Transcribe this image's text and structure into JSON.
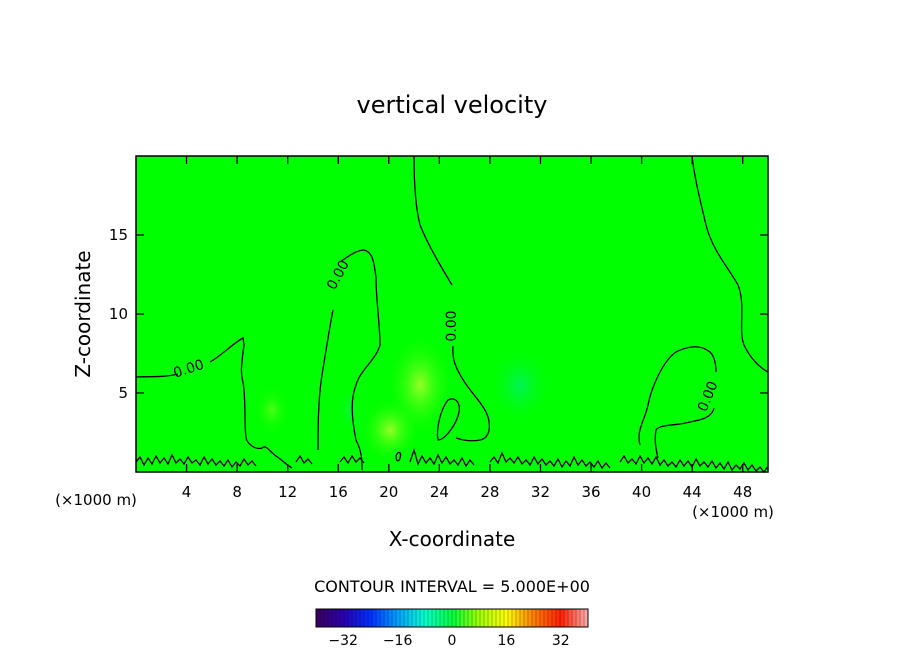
{
  "chart_data": {
    "type": "heatmap",
    "title": "vertical velocity",
    "xlabel": "X-coordinate",
    "ylabel": "Z-coordinate",
    "x_unit_left": "(×1000 m)",
    "x_unit_right": "(×1000 m)",
    "xlim": [
      0,
      50
    ],
    "ylim": [
      0,
      20
    ],
    "x_ticks": [
      4,
      8,
      12,
      16,
      20,
      24,
      28,
      32,
      36,
      40,
      44,
      48
    ],
    "y_ticks": [
      5,
      10,
      15
    ],
    "grid": false,
    "field_color": "#00ff00",
    "contour_level_label": "0.00",
    "contour_interval_text": "CONTOUR INTERVAL = 5.000E+00",
    "colorbar": {
      "range": [
        -40,
        40
      ],
      "ticks": [
        -32,
        -16,
        0,
        16,
        32
      ],
      "colors": [
        "#3a0060",
        "#2a00b0",
        "#0030ff",
        "#00a0ff",
        "#00ffd0",
        "#00ff40",
        "#a0ff00",
        "#ffff00",
        "#ff8000",
        "#ff2000",
        "#ffb0b0"
      ]
    }
  }
}
